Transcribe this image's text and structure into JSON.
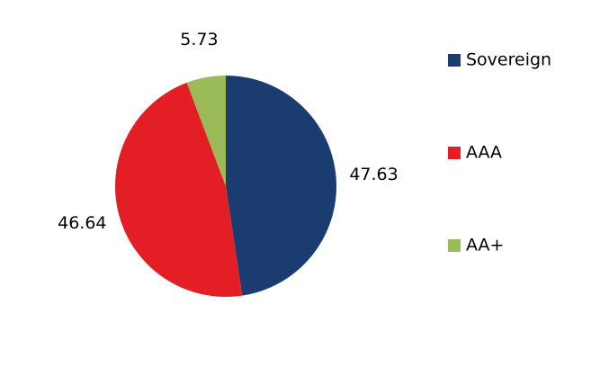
{
  "chart_data": {
    "type": "pie",
    "categories": [
      "Sovereign",
      "AAA",
      "AA+"
    ],
    "values": [
      47.63,
      46.64,
      5.73
    ],
    "colors": [
      "#1a3c70",
      "#e31e24",
      "#9bbb59"
    ],
    "legend": "right"
  }
}
